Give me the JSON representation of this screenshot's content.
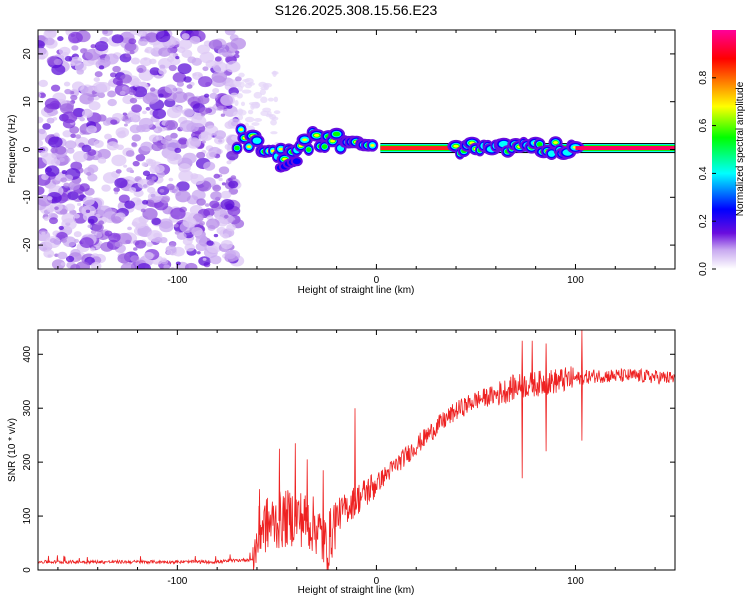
{
  "title": "S126.2025.308.15.56.E23",
  "chart_data": [
    {
      "type": "heatmap",
      "xlabel": "Height of straight line (km)",
      "ylabel": "Frequency (Hz)",
      "xlim": [
        -170,
        150
      ],
      "ylim": [
        -25,
        25
      ],
      "xticks": [
        -100,
        0,
        100
      ],
      "yticks": [
        -20,
        -10,
        0,
        10,
        20
      ],
      "noise_region_x": [
        -170,
        -72
      ],
      "signal_track": [
        {
          "x": -68,
          "f": 2.5
        },
        {
          "x": -62,
          "f": 1.5
        },
        {
          "x": -55,
          "f": 1.0
        },
        {
          "x": -48,
          "f": -0.5
        },
        {
          "x": -42,
          "f": -2.0
        },
        {
          "x": -37,
          "f": 1.0
        },
        {
          "x": -30,
          "f": 2.5
        },
        {
          "x": -22,
          "f": 2.0
        },
        {
          "x": -12,
          "f": 1.0
        },
        {
          "x": -4,
          "f": 0.5
        },
        {
          "x": 0,
          "f": 0.3
        },
        {
          "x": 150,
          "f": 0.3
        }
      ],
      "colorbar": {
        "label": "Normalized spectral amplitude",
        "ticks": [
          "0.0",
          "0.2",
          "0.4",
          "0.6",
          "0.8"
        ],
        "range": [
          0,
          1
        ],
        "colors": [
          "#ffffff",
          "#6a0dde",
          "#0000ff",
          "#00ffff",
          "#00ff00",
          "#ffff00",
          "#ff8000",
          "#ff0000",
          "#ff0099"
        ]
      }
    },
    {
      "type": "line",
      "xlabel": "Height of straight line (km)",
      "ylabel": "SNR (10 * v/v)",
      "xlim": [
        -170,
        150
      ],
      "ylim": [
        0,
        445
      ],
      "xticks": [
        -100,
        0,
        100
      ],
      "yticks": [
        0,
        100,
        200,
        300,
        400
      ],
      "color": "#ee2222",
      "series": [
        {
          "name": "SNR",
          "x": [
            -170,
            -140,
            -110,
            -80,
            -62,
            -58,
            -50,
            -40,
            -30,
            -25,
            -20,
            -10,
            0,
            10,
            20,
            30,
            40,
            50,
            60,
            70,
            80,
            90,
            100,
            110,
            120,
            130,
            140,
            150
          ],
          "values": [
            15,
            15,
            15,
            15,
            20,
            80,
            90,
            100,
            80,
            40,
            100,
            130,
            160,
            195,
            230,
            265,
            295,
            315,
            325,
            340,
            345,
            350,
            355,
            360,
            360,
            360,
            358,
            355
          ]
        }
      ],
      "spikes": [
        {
          "x": -59,
          "y": 150
        },
        {
          "x": -49,
          "y": 225
        },
        {
          "x": -41,
          "y": 235
        },
        {
          "x": -35,
          "y": 205
        },
        {
          "x": -27,
          "y": 185
        },
        {
          "x": -11,
          "y": 300
        },
        {
          "x": 73,
          "y": 425
        },
        {
          "x": 73,
          "y": 170
        },
        {
          "x": 78,
          "y": 425
        },
        {
          "x": 85,
          "y": 420
        },
        {
          "x": 85,
          "y": 220
        },
        {
          "x": 103,
          "y": 445
        },
        {
          "x": 103,
          "y": 240
        }
      ]
    }
  ]
}
